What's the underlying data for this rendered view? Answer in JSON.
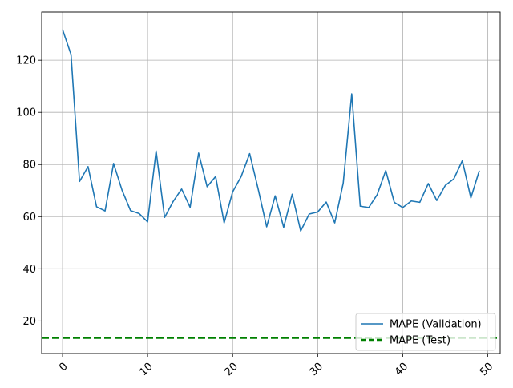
{
  "chart_data": {
    "type": "line",
    "title": "",
    "xlabel": "",
    "ylabel": "",
    "xlim": [
      -2.45,
      51.45
    ],
    "ylim": [
      7.5,
      138.5
    ],
    "x_ticks": [
      0,
      10,
      20,
      30,
      40,
      50
    ],
    "y_ticks": [
      20,
      40,
      60,
      80,
      100,
      120
    ],
    "grid": true,
    "legend_position": "lower-right",
    "colors": {
      "validation": "#1f77b4",
      "test": "#008000",
      "grid": "#b0b0b0"
    },
    "series": [
      {
        "name": "MAPE (Validation)",
        "style": "solid",
        "x": [
          0,
          1,
          2,
          3,
          4,
          5,
          6,
          7,
          8,
          9,
          10,
          11,
          12,
          13,
          14,
          15,
          16,
          17,
          18,
          19,
          20,
          21,
          22,
          23,
          24,
          25,
          26,
          27,
          28,
          29,
          30,
          31,
          32,
          33,
          34,
          35,
          36,
          37,
          38,
          39,
          40,
          41,
          42,
          43,
          44,
          45,
          46,
          47,
          48,
          49
        ],
        "values": [
          131.8,
          122.2,
          73.5,
          79.2,
          63.8,
          62.2,
          80.4,
          70.1,
          62.3,
          61.2,
          58.0,
          85.2,
          59.7,
          65.8,
          70.6,
          63.6,
          84.4,
          71.5,
          75.4,
          57.6,
          69.5,
          75.4,
          84.2,
          70.6,
          56.1,
          68.0,
          55.9,
          68.6,
          54.5,
          61.0,
          61.8,
          65.6,
          57.6,
          72.9,
          107.1,
          64.0,
          63.5,
          68.5,
          77.7,
          65.5,
          63.5,
          66.0,
          65.5,
          72.7,
          66.2,
          72.0,
          74.5,
          81.5,
          67.2,
          77.7
        ]
      },
      {
        "name": "MAPE (Test)",
        "style": "dashed",
        "constant": 13.5
      }
    ]
  }
}
